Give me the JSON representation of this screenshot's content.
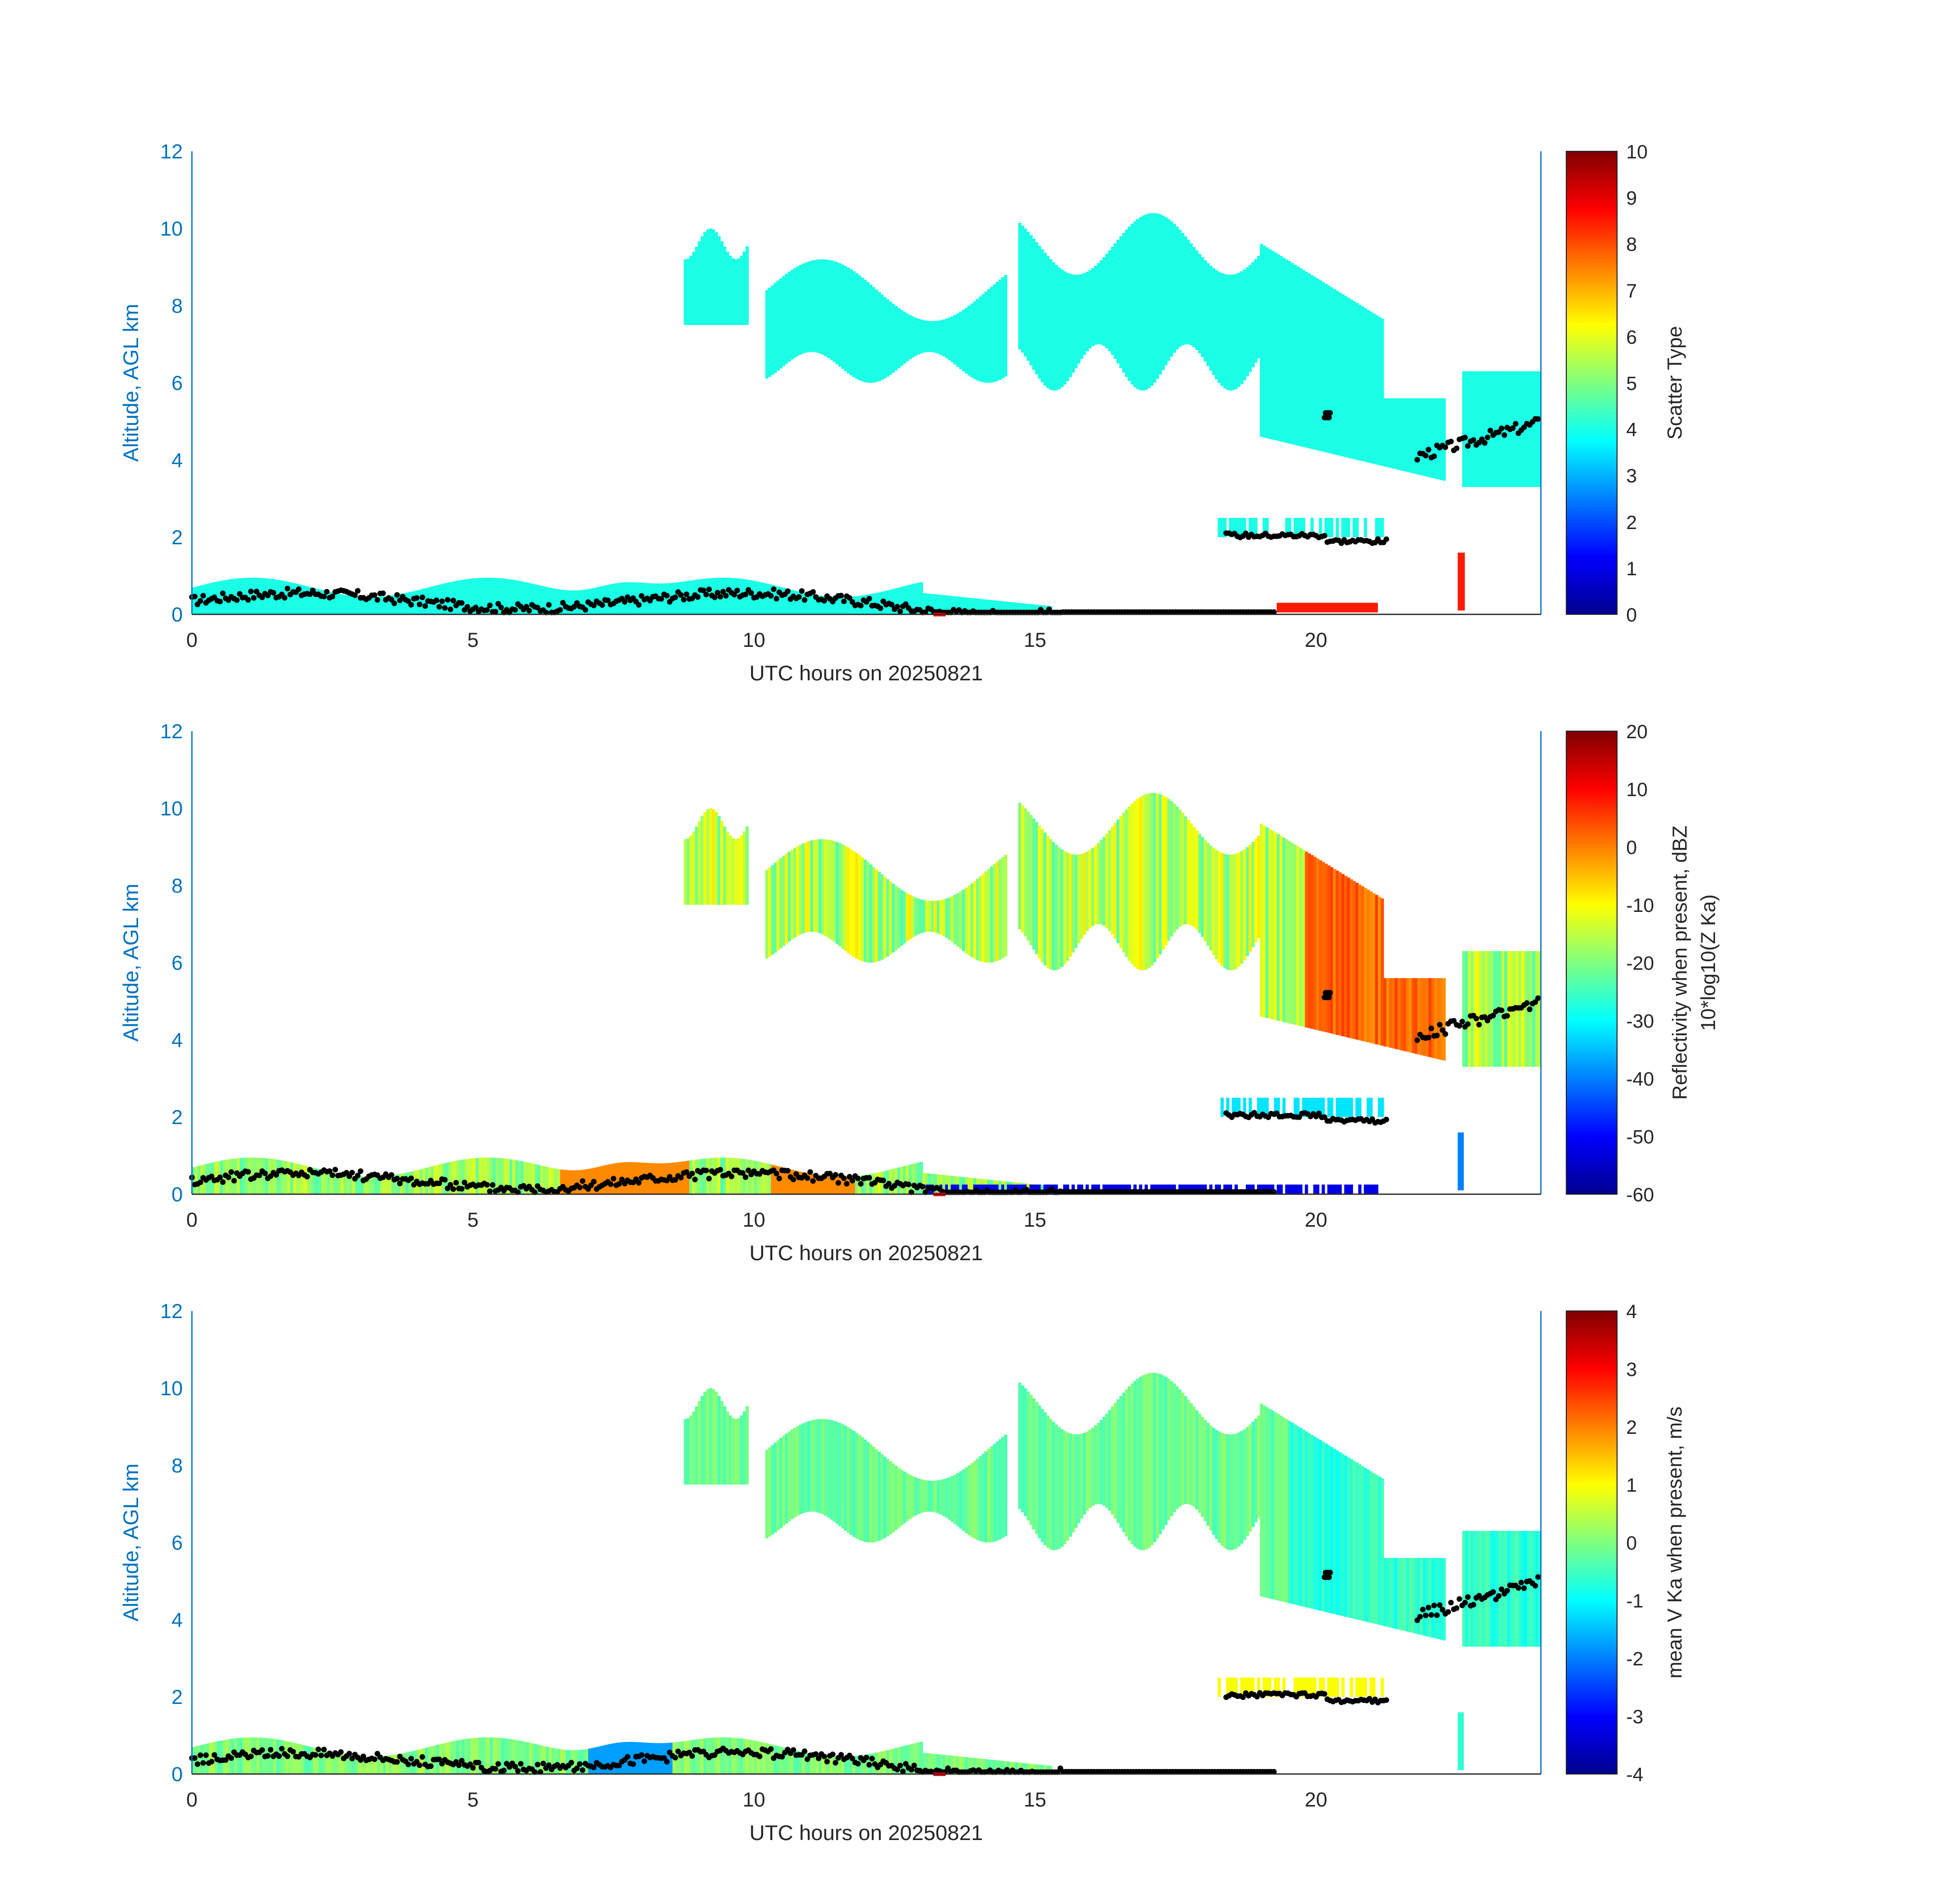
{
  "chart_data": [
    {
      "type": "heatmap",
      "xlabel": "UTC hours on 20250821",
      "ylabel": "Altitude, AGL km",
      "xlim": [
        0,
        24
      ],
      "ylim": [
        0,
        12
      ],
      "xticks": [
        "0",
        "5",
        "10",
        "15",
        "20"
      ],
      "yticks": [
        "0",
        "2",
        "4",
        "6",
        "8",
        "10",
        "12"
      ],
      "colorbar": {
        "label": "Scatter Type",
        "label_sub": "",
        "min": 0,
        "max": 10,
        "ticks": [
          "0",
          "1",
          "2",
          "3",
          "4",
          "5",
          "6",
          "7",
          "8",
          "9",
          "10"
        ]
      },
      "field_value": 4,
      "field_colormap": "jet",
      "cloud_layers": [
        {
          "x_start": 8.7,
          "x_end": 24,
          "base_km": 6.3,
          "top_km": 9.8,
          "value": 4,
          "note": "upper cloud, descending after 19 h"
        },
        {
          "x_start": 0,
          "x_end": 15.5,
          "base_km": 0,
          "top_km": 1.0,
          "value": 4,
          "note": "boundary layer"
        },
        {
          "x_start": 18.2,
          "x_end": 21.2,
          "base_km": 1.9,
          "top_km": 2.5,
          "value": 4,
          "note": "low layer near 2 km"
        },
        {
          "x_start": 19.3,
          "x_end": 21.1,
          "base_km": 0,
          "top_km": 0.3,
          "value": 8.5,
          "note": "near-surface scatter type"
        },
        {
          "x_start": 22.5,
          "x_end": 22.7,
          "base_km": 0,
          "top_km": 1.6,
          "value": 8.5,
          "note": "narrow column"
        }
      ],
      "markers": {
        "type": "scatter",
        "color": "#000000",
        "description": "cloud-base height points (black dots)"
      },
      "red_mark_x": 13.3
    },
    {
      "type": "heatmap",
      "xlabel": "UTC hours on 20250821",
      "ylabel": "Altitude, AGL km",
      "xlim": [
        0,
        24
      ],
      "ylim": [
        0,
        12
      ],
      "xticks": [
        "0",
        "5",
        "10",
        "15",
        "20"
      ],
      "yticks": [
        "0",
        "2",
        "4",
        "6",
        "8",
        "10",
        "12"
      ],
      "colorbar": {
        "label": "Reflectivity when present, dBZ",
        "label_sub": "10*log10(Z Ka)",
        "min": -60,
        "max": 20,
        "ticks": [
          "-60",
          "-50",
          "-40",
          "-30",
          "-20",
          "-10",
          "0",
          "10",
          "20"
        ]
      },
      "field_colormap": "jet",
      "value_range_dbz": [
        -60,
        10
      ],
      "notes": [
        "upper cloud -25 to -5 dBZ",
        "core near 20-23 h around 4 km up to 0 dBZ",
        "boundary layer near 7.5 h up to 0 dBZ",
        "weak surface echoes -50 dBZ from 13 to 21 h"
      ],
      "markers": {
        "type": "scatter",
        "color": "#000000"
      },
      "red_mark_x": 13.3
    },
    {
      "type": "heatmap",
      "xlabel": "UTC hours on 20250821",
      "ylabel": "Altitude, AGL km",
      "xlim": [
        0,
        24
      ],
      "ylim": [
        0,
        12
      ],
      "xticks": [
        "0",
        "5",
        "10",
        "15",
        "20"
      ],
      "yticks": [
        "0",
        "2",
        "4",
        "6",
        "8",
        "10",
        "12"
      ],
      "colorbar": {
        "label": "mean V Ka when present, m/s",
        "label_sub": "",
        "min": -4,
        "max": 4,
        "ticks": [
          "-4",
          "-3",
          "-2",
          "-1",
          "0",
          "1",
          "2",
          "3",
          "4"
        ]
      },
      "field_colormap": "jet",
      "value_range_ms": [
        -2,
        1
      ],
      "notes": [
        "upper cloud mostly -0.5 to 0.5 m/s",
        "lower part of descending cloud -1 m/s",
        "boundary layer near 7.5 h around -2 m/s"
      ],
      "markers": {
        "type": "scatter",
        "color": "#000000"
      },
      "red_mark_x": 13.3
    }
  ]
}
